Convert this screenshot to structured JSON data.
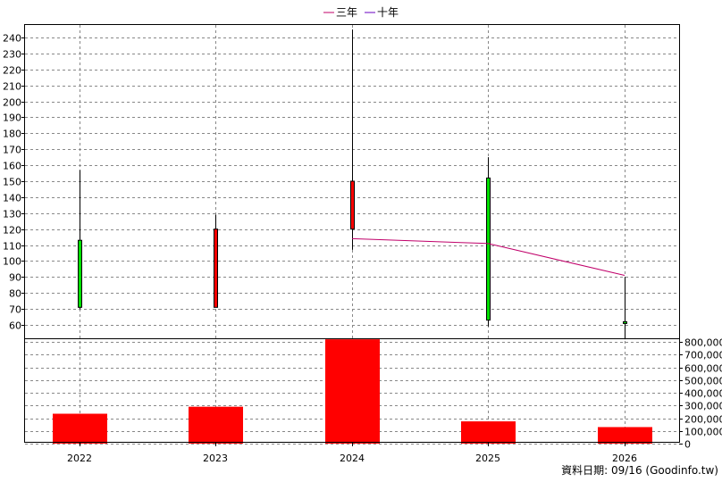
{
  "legend": [
    {
      "label": "三年",
      "color": "#c0006a"
    },
    {
      "label": "十年",
      "color": "#6a00c0"
    }
  ],
  "footer": "資料日期: 09/16 (Goodinfo.tw)",
  "colors": {
    "up": "#ff0000",
    "down": "#00e000",
    "volume": "#ff0000"
  },
  "chart_data": [
    {
      "type": "candlestick",
      "categories": [
        "2022",
        "2023",
        "2024",
        "2025",
        "2026"
      ],
      "ohlc": [
        {
          "x": "2022",
          "open": 113,
          "high": 157,
          "low": 70,
          "close": 71
        },
        {
          "x": "2023",
          "open": 71,
          "high": 129,
          "low": 71,
          "close": 120
        },
        {
          "x": "2024",
          "open": 120,
          "high": 245,
          "low": 107,
          "close": 150
        },
        {
          "x": "2025",
          "open": 152,
          "high": 165,
          "low": 59,
          "close": 63
        },
        {
          "x": "2026",
          "open": 62,
          "high": 90,
          "low": 51,
          "close": 61
        }
      ],
      "series": [
        {
          "name": "三年",
          "x": [
            "2024",
            "2025",
            "2026"
          ],
          "values": [
            114,
            111,
            91
          ],
          "color": "#c0006a"
        }
      ],
      "ylim": [
        52,
        248
      ],
      "yticks": [
        60,
        70,
        80,
        90,
        100,
        110,
        120,
        130,
        140,
        150,
        160,
        170,
        180,
        190,
        200,
        210,
        220,
        230,
        240
      ],
      "grid": true
    },
    {
      "type": "bar",
      "categories": [
        "2022",
        "2023",
        "2024",
        "2025",
        "2026"
      ],
      "values": [
        235000,
        290000,
        820000,
        175000,
        130000
      ],
      "ylim": [
        0,
        820000
      ],
      "yticks": [
        "0",
        "100,000",
        "200,000",
        "300,000",
        "400,000",
        "500,000",
        "600,000",
        "700,000",
        "800,000"
      ],
      "grid": true
    }
  ]
}
